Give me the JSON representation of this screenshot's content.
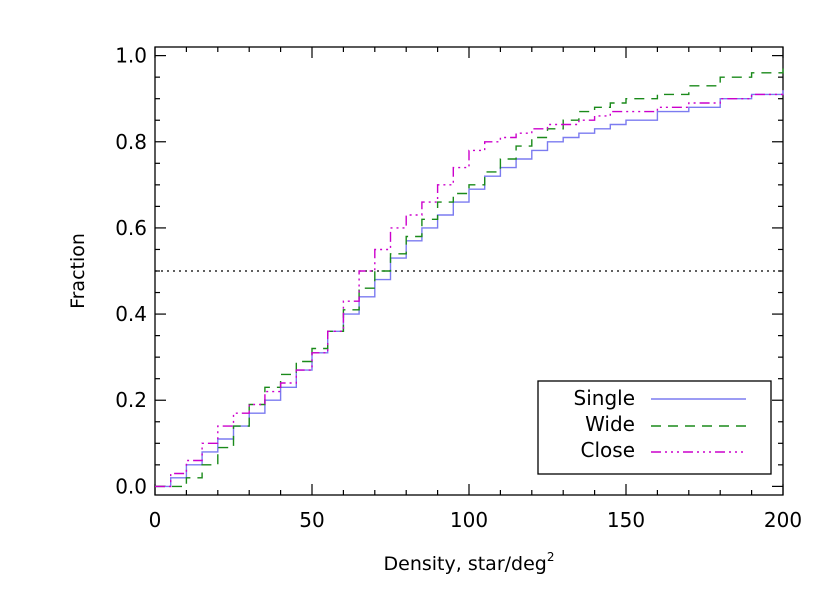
{
  "chart_data": {
    "type": "line",
    "xlabel": "Density, star/deg",
    "xlabel_superscript": "2",
    "ylabel": "Fraction",
    "xlim": [
      0,
      200
    ],
    "ylim": [
      -0.02,
      1.02
    ],
    "xticks": [
      0,
      50,
      100,
      150,
      200
    ],
    "yticks": [
      0.0,
      0.2,
      0.4,
      0.6,
      0.8,
      1.0
    ],
    "xtick_labels": [
      "0",
      "50",
      "100",
      "150",
      "200"
    ],
    "ytick_labels": [
      "0.0",
      "0.2",
      "0.4",
      "0.6",
      "0.8",
      "1.0"
    ],
    "reference_line": {
      "y": 0.5,
      "style": "dotted"
    },
    "legend": {
      "position": "bottom-right"
    },
    "grid": false,
    "series": [
      {
        "name": "Single",
        "color": "#7b7bf0",
        "dash": "solid",
        "step": true,
        "points": [
          [
            0,
            0.0
          ],
          [
            5,
            0.02
          ],
          [
            10,
            0.05
          ],
          [
            15,
            0.08
          ],
          [
            20,
            0.11
          ],
          [
            25,
            0.14
          ],
          [
            30,
            0.17
          ],
          [
            35,
            0.2
          ],
          [
            40,
            0.23
          ],
          [
            45,
            0.27
          ],
          [
            50,
            0.31
          ],
          [
            55,
            0.36
          ],
          [
            60,
            0.4
          ],
          [
            65,
            0.44
          ],
          [
            70,
            0.48
          ],
          [
            75,
            0.53
          ],
          [
            80,
            0.57
          ],
          [
            85,
            0.6
          ],
          [
            90,
            0.63
          ],
          [
            95,
            0.66
          ],
          [
            100,
            0.69
          ],
          [
            105,
            0.72
          ],
          [
            110,
            0.74
          ],
          [
            115,
            0.76
          ],
          [
            120,
            0.78
          ],
          [
            125,
            0.8
          ],
          [
            130,
            0.81
          ],
          [
            135,
            0.82
          ],
          [
            140,
            0.83
          ],
          [
            145,
            0.84
          ],
          [
            150,
            0.85
          ],
          [
            160,
            0.87
          ],
          [
            170,
            0.88
          ],
          [
            180,
            0.9
          ],
          [
            190,
            0.91
          ],
          [
            200,
            0.92
          ]
        ]
      },
      {
        "name": "Wide",
        "color": "#1a8a1a",
        "dash": "10,7",
        "step": true,
        "points": [
          [
            0,
            0.0
          ],
          [
            10,
            0.02
          ],
          [
            15,
            0.05
          ],
          [
            20,
            0.09
          ],
          [
            25,
            0.14
          ],
          [
            30,
            0.19
          ],
          [
            35,
            0.23
          ],
          [
            40,
            0.26
          ],
          [
            45,
            0.29
          ],
          [
            50,
            0.32
          ],
          [
            55,
            0.36
          ],
          [
            60,
            0.41
          ],
          [
            65,
            0.46
          ],
          [
            70,
            0.5
          ],
          [
            75,
            0.54
          ],
          [
            80,
            0.58
          ],
          [
            85,
            0.62
          ],
          [
            90,
            0.66
          ],
          [
            95,
            0.68
          ],
          [
            100,
            0.7
          ],
          [
            105,
            0.73
          ],
          [
            110,
            0.76
          ],
          [
            115,
            0.79
          ],
          [
            120,
            0.81
          ],
          [
            125,
            0.83
          ],
          [
            130,
            0.85
          ],
          [
            135,
            0.87
          ],
          [
            140,
            0.88
          ],
          [
            145,
            0.89
          ],
          [
            150,
            0.9
          ],
          [
            160,
            0.91
          ],
          [
            170,
            0.93
          ],
          [
            180,
            0.95
          ],
          [
            190,
            0.96
          ],
          [
            200,
            0.97
          ]
        ]
      },
      {
        "name": "Close",
        "color": "#cc00cc",
        "dash": "10,4,2,4,2,4,2,4",
        "step": true,
        "points": [
          [
            0,
            0.0
          ],
          [
            5,
            0.03
          ],
          [
            10,
            0.06
          ],
          [
            15,
            0.1
          ],
          [
            20,
            0.14
          ],
          [
            25,
            0.17
          ],
          [
            30,
            0.19
          ],
          [
            35,
            0.22
          ],
          [
            40,
            0.24
          ],
          [
            45,
            0.27
          ],
          [
            50,
            0.31
          ],
          [
            55,
            0.36
          ],
          [
            60,
            0.43
          ],
          [
            65,
            0.5
          ],
          [
            70,
            0.55
          ],
          [
            75,
            0.6
          ],
          [
            80,
            0.63
          ],
          [
            85,
            0.66
          ],
          [
            90,
            0.7
          ],
          [
            95,
            0.74
          ],
          [
            100,
            0.78
          ],
          [
            105,
            0.8
          ],
          [
            110,
            0.81
          ],
          [
            115,
            0.82
          ],
          [
            120,
            0.83
          ],
          [
            125,
            0.84
          ],
          [
            130,
            0.84
          ],
          [
            135,
            0.85
          ],
          [
            140,
            0.86
          ],
          [
            145,
            0.87
          ],
          [
            150,
            0.87
          ],
          [
            160,
            0.88
          ],
          [
            170,
            0.89
          ],
          [
            180,
            0.9
          ],
          [
            190,
            0.91
          ],
          [
            200,
            0.92
          ]
        ]
      }
    ]
  }
}
